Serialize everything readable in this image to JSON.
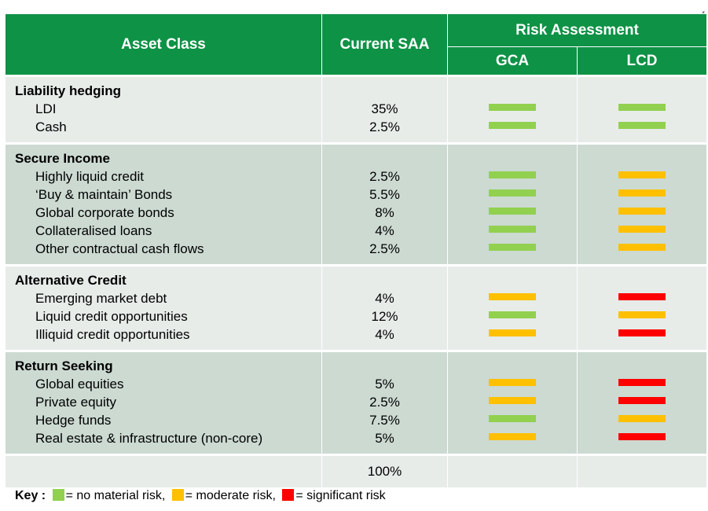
{
  "stray_mark": "f",
  "header": {
    "asset_class": "Asset Class",
    "current_saa": "Current SAA",
    "risk_assessment": "Risk Assessment",
    "gca": "GCA",
    "lcd": "LCD"
  },
  "groups": [
    {
      "title": "Liability hedging",
      "rows": [
        {
          "name": "LDI",
          "saa": "35%",
          "gca": "green",
          "lcd": "green"
        },
        {
          "name": "Cash",
          "saa": "2.5%",
          "gca": "green",
          "lcd": "green"
        }
      ]
    },
    {
      "title": "Secure Income",
      "rows": [
        {
          "name": "Highly liquid credit",
          "saa": "2.5%",
          "gca": "green",
          "lcd": "orange"
        },
        {
          "name": "‘Buy & maintain’ Bonds",
          "saa": "5.5%",
          "gca": "green",
          "lcd": "orange"
        },
        {
          "name": "Global corporate bonds",
          "saa": "8%",
          "gca": "green",
          "lcd": "orange"
        },
        {
          "name": "Collateralised loans",
          "saa": "4%",
          "gca": "green",
          "lcd": "orange"
        },
        {
          "name": "Other contractual cash flows",
          "saa": "2.5%",
          "gca": "green",
          "lcd": "orange"
        }
      ]
    },
    {
      "title": "Alternative Credit",
      "rows": [
        {
          "name": "Emerging market debt",
          "saa": "4%",
          "gca": "orange",
          "lcd": "red"
        },
        {
          "name": "Liquid credit opportunities",
          "saa": "12%",
          "gca": "green",
          "lcd": "orange"
        },
        {
          "name": "Illiquid credit opportunities",
          "saa": "4%",
          "gca": "orange",
          "lcd": "red"
        }
      ]
    },
    {
      "title": "Return Seeking",
      "rows": [
        {
          "name": "Global equities",
          "saa": "5%",
          "gca": "orange",
          "lcd": "red"
        },
        {
          "name": "Private equity",
          "saa": "2.5%",
          "gca": "orange",
          "lcd": "red"
        },
        {
          "name": "Hedge funds",
          "saa": "7.5%",
          "gca": "green",
          "lcd": "orange"
        },
        {
          "name": "Real estate  & infrastructure (non-core)",
          "saa": "5%",
          "gca": "orange",
          "lcd": "red"
        }
      ]
    }
  ],
  "total": "100%",
  "colors": {
    "green": "#92d050",
    "orange": "#ffc000",
    "red": "#ff0000",
    "header": "#0e9246"
  },
  "key": {
    "label": "Key :",
    "no_material": "= no material risk,",
    "moderate": "= moderate risk,",
    "significant": "= significant risk"
  }
}
